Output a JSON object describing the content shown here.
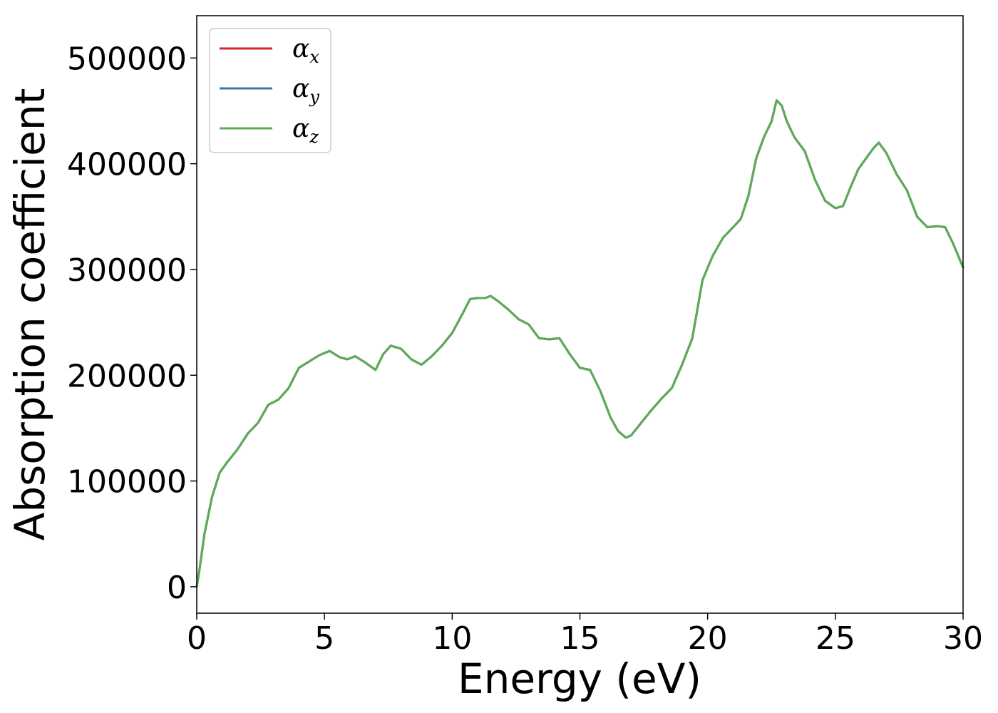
{
  "chart_data": {
    "type": "line",
    "xlabel": "Energy (eV)",
    "ylabel": "Absorption coefficient",
    "xlim": [
      0,
      30
    ],
    "ylim": [
      -25000,
      540000
    ],
    "xticks": [
      0,
      5,
      10,
      15,
      20,
      25,
      30
    ],
    "xtick_labels": [
      "0",
      "5",
      "10",
      "15",
      "20",
      "25",
      "30"
    ],
    "yticks": [
      0,
      100000,
      200000,
      300000,
      400000,
      500000
    ],
    "ytick_labels": [
      "0",
      "100000",
      "200000",
      "300000",
      "400000",
      "500000"
    ],
    "grid": false,
    "legend_position": "top-left",
    "x": [
      0,
      0.1,
      0.3,
      0.6,
      0.9,
      1.2,
      1.6,
      2.0,
      2.4,
      2.8,
      3.2,
      3.6,
      4.0,
      4.4,
      4.8,
      5.2,
      5.6,
      5.9,
      6.2,
      6.6,
      7.0,
      7.3,
      7.6,
      8.0,
      8.4,
      8.8,
      9.2,
      9.6,
      10.0,
      10.4,
      10.7,
      11.0,
      11.3,
      11.5,
      11.8,
      12.2,
      12.6,
      13.0,
      13.4,
      13.8,
      14.2,
      14.6,
      15.0,
      15.4,
      15.8,
      16.2,
      16.5,
      16.8,
      17.0,
      17.4,
      17.8,
      18.2,
      18.6,
      19.0,
      19.4,
      19.8,
      20.2,
      20.6,
      21.0,
      21.3,
      21.6,
      21.9,
      22.2,
      22.5,
      22.7,
      22.9,
      23.1,
      23.4,
      23.8,
      24.2,
      24.6,
      25.0,
      25.3,
      25.6,
      25.9,
      26.2,
      26.5,
      26.7,
      27.0,
      27.4,
      27.8,
      28.2,
      28.6,
      29.0,
      29.3,
      29.6,
      30.0
    ],
    "series": [
      {
        "name": "αx",
        "color": "#d62728",
        "values": [
          0,
          15000,
          50000,
          85000,
          108000,
          118000,
          130000,
          145000,
          155000,
          172000,
          177000,
          188000,
          207000,
          213000,
          219000,
          223000,
          217000,
          215000,
          218000,
          212000,
          205000,
          220000,
          228000,
          225000,
          215000,
          210000,
          218000,
          228000,
          240000,
          258000,
          272000,
          273000,
          273000,
          275000,
          270000,
          262000,
          253000,
          248000,
          235000,
          234000,
          235000,
          220000,
          207000,
          205000,
          185000,
          160000,
          147000,
          141000,
          143000,
          155000,
          167000,
          178000,
          188000,
          210000,
          235000,
          290000,
          313000,
          330000,
          340000,
          348000,
          370000,
          405000,
          425000,
          440000,
          460000,
          455000,
          440000,
          425000,
          412000,
          385000,
          365000,
          358000,
          360000,
          378000,
          395000,
          405000,
          415000,
          420000,
          410000,
          390000,
          375000,
          350000,
          340000,
          341000,
          340000,
          325000,
          302000
        ]
      },
      {
        "name": "αy",
        "color": "#3a78a8",
        "values": [
          0,
          15000,
          50000,
          85000,
          108000,
          118000,
          130000,
          145000,
          155000,
          172000,
          177000,
          188000,
          207000,
          213000,
          219000,
          223000,
          217000,
          215000,
          218000,
          212000,
          205000,
          220000,
          228000,
          225000,
          215000,
          210000,
          218000,
          228000,
          240000,
          258000,
          272000,
          273000,
          273000,
          275000,
          270000,
          262000,
          253000,
          248000,
          235000,
          234000,
          235000,
          220000,
          207000,
          205000,
          185000,
          160000,
          147000,
          141000,
          143000,
          155000,
          167000,
          178000,
          188000,
          210000,
          235000,
          290000,
          313000,
          330000,
          340000,
          348000,
          370000,
          405000,
          425000,
          440000,
          460000,
          455000,
          440000,
          425000,
          412000,
          385000,
          365000,
          358000,
          360000,
          378000,
          395000,
          405000,
          415000,
          420000,
          410000,
          390000,
          375000,
          350000,
          340000,
          341000,
          340000,
          325000,
          302000
        ]
      },
      {
        "name": "αz",
        "color": "#5aac55",
        "values": [
          0,
          15000,
          50000,
          85000,
          108000,
          118000,
          130000,
          145000,
          155000,
          172000,
          177000,
          188000,
          207000,
          213000,
          219000,
          223000,
          217000,
          215000,
          218000,
          212000,
          205000,
          220000,
          228000,
          225000,
          215000,
          210000,
          218000,
          228000,
          240000,
          258000,
          272000,
          273000,
          273000,
          275000,
          270000,
          262000,
          253000,
          248000,
          235000,
          234000,
          235000,
          220000,
          207000,
          205000,
          185000,
          160000,
          147000,
          141000,
          143000,
          155000,
          167000,
          178000,
          188000,
          210000,
          235000,
          290000,
          313000,
          330000,
          340000,
          348000,
          370000,
          405000,
          425000,
          440000,
          460000,
          455000,
          440000,
          425000,
          412000,
          385000,
          365000,
          358000,
          360000,
          378000,
          395000,
          405000,
          415000,
          420000,
          410000,
          390000,
          375000,
          350000,
          340000,
          341000,
          340000,
          325000,
          302000
        ]
      }
    ],
    "legend": [
      {
        "symbol": "α",
        "sub": "x",
        "color": "#d62728"
      },
      {
        "symbol": "α",
        "sub": "y",
        "color": "#3a78a8"
      },
      {
        "symbol": "α",
        "sub": "z",
        "color": "#5aac55"
      }
    ]
  }
}
